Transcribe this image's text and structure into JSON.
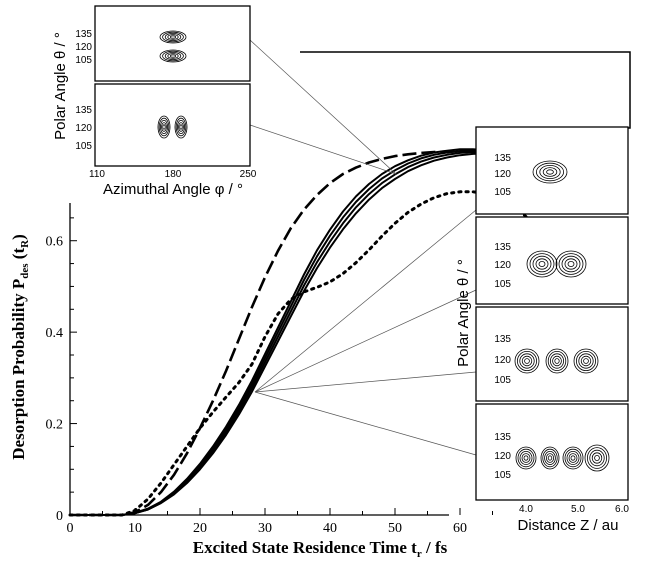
{
  "chart_data": {
    "type": "line",
    "xlabel": "Excited State Residence Time t_r / fs",
    "xlabel_main": "Excited State Residence Time t",
    "xlabel_sub": "r",
    "xlabel_unit": " / fs",
    "ylabel_main": "Desorption Probability P",
    "ylabel_sub1": "des",
    "ylabel_paren": " (t",
    "ylabel_sub2": "R",
    "ylabel_close": ")",
    "xlim": [
      0,
      68
    ],
    "ylim": [
      0,
      0.7
    ],
    "xticks": [
      0,
      10,
      20,
      30,
      40,
      50,
      60
    ],
    "yticks": [
      0,
      0.2,
      0.4,
      0.6
    ],
    "ytick_labels": [
      "0",
      "0.2",
      "0.4",
      "0.6"
    ],
    "grid": false,
    "series": [
      {
        "style": "solid",
        "x": [
          0,
          8,
          10,
          12,
          14,
          16,
          18,
          20,
          22,
          24,
          26,
          28,
          30,
          32,
          34,
          36,
          38,
          40,
          42,
          44,
          46,
          48,
          50,
          52,
          54,
          56,
          58,
          60,
          62,
          64,
          66,
          68,
          70,
          72
        ],
        "y": [
          0,
          0,
          0.004,
          0.012,
          0.026,
          0.045,
          0.07,
          0.1,
          0.135,
          0.175,
          0.22,
          0.27,
          0.325,
          0.38,
          0.435,
          0.49,
          0.54,
          0.585,
          0.625,
          0.66,
          0.69,
          0.715,
          0.735,
          0.752,
          0.765,
          0.775,
          0.782,
          0.787,
          0.79,
          0.791,
          0.79,
          0.785,
          0.775,
          0.76
        ]
      },
      {
        "style": "solid",
        "x": [
          0,
          8,
          10,
          12,
          14,
          16,
          18,
          20,
          22,
          24,
          26,
          28,
          30,
          32,
          34,
          36,
          38,
          40,
          42,
          44,
          46,
          48,
          50,
          52,
          54,
          56,
          58,
          60,
          62,
          64,
          66,
          68,
          70,
          72
        ],
        "y": [
          0,
          0,
          0.004,
          0.012,
          0.027,
          0.047,
          0.073,
          0.104,
          0.14,
          0.181,
          0.227,
          0.278,
          0.334,
          0.39,
          0.446,
          0.502,
          0.553,
          0.598,
          0.638,
          0.673,
          0.702,
          0.726,
          0.745,
          0.761,
          0.773,
          0.782,
          0.788,
          0.792,
          0.794,
          0.794,
          0.792,
          0.786,
          0.775,
          0.76
        ]
      },
      {
        "style": "solid",
        "x": [
          0,
          8,
          10,
          12,
          14,
          16,
          18,
          20,
          22,
          24,
          26,
          28,
          30,
          32,
          34,
          36,
          38,
          40,
          42,
          44,
          46,
          48,
          50,
          52,
          54,
          56,
          58,
          60,
          62,
          64,
          66,
          68,
          70,
          72
        ],
        "y": [
          0,
          0,
          0.004,
          0.013,
          0.028,
          0.049,
          0.076,
          0.108,
          0.145,
          0.187,
          0.234,
          0.286,
          0.343,
          0.4,
          0.457,
          0.514,
          0.566,
          0.611,
          0.651,
          0.685,
          0.713,
          0.736,
          0.754,
          0.769,
          0.78,
          0.788,
          0.793,
          0.796,
          0.797,
          0.796,
          0.793,
          0.787,
          0.775,
          0.76
        ]
      },
      {
        "style": "solid",
        "x": [
          0,
          8,
          10,
          12,
          14,
          16,
          18,
          20,
          22,
          24,
          26,
          28,
          30,
          32,
          34,
          36,
          38,
          40,
          42,
          44,
          46,
          48,
          50,
          52,
          54,
          56,
          58,
          60,
          62,
          64,
          66,
          68,
          70,
          72
        ],
        "y": [
          0,
          0,
          0.005,
          0.014,
          0.029,
          0.051,
          0.079,
          0.112,
          0.15,
          0.193,
          0.241,
          0.294,
          0.352,
          0.41,
          0.468,
          0.526,
          0.579,
          0.624,
          0.664,
          0.697,
          0.724,
          0.746,
          0.763,
          0.776,
          0.786,
          0.793,
          0.797,
          0.8,
          0.8,
          0.798,
          0.794,
          0.787,
          0.775,
          0.76
        ]
      },
      {
        "style": "dashed",
        "x": [
          0,
          8,
          10,
          12,
          14,
          16,
          18,
          20,
          22,
          24,
          26,
          28,
          30,
          32,
          34,
          36,
          38,
          40,
          42,
          44,
          46,
          48,
          50,
          52,
          54,
          56,
          58,
          60,
          62,
          64,
          66,
          68,
          70,
          72
        ],
        "y": [
          0,
          0,
          0.006,
          0.022,
          0.05,
          0.088,
          0.135,
          0.19,
          0.25,
          0.315,
          0.385,
          0.455,
          0.52,
          0.578,
          0.628,
          0.668,
          0.7,
          0.726,
          0.746,
          0.76,
          0.771,
          0.779,
          0.785,
          0.789,
          0.792,
          0.794,
          0.795,
          0.796,
          0.797,
          0.797,
          0.796,
          0.793,
          0.787,
          0.775
        ]
      },
      {
        "style": "dotted",
        "x": [
          0,
          8,
          10,
          12,
          14,
          16,
          18,
          20,
          22,
          24,
          26,
          28,
          30,
          32,
          34,
          36,
          38,
          40,
          42,
          44,
          46,
          48,
          50,
          52,
          54,
          56,
          58,
          60,
          62,
          64,
          66,
          68,
          70,
          72
        ],
        "y": [
          0,
          0,
          0.01,
          0.035,
          0.07,
          0.11,
          0.15,
          0.19,
          0.225,
          0.258,
          0.29,
          0.33,
          0.39,
          0.44,
          0.472,
          0.488,
          0.498,
          0.51,
          0.528,
          0.552,
          0.58,
          0.61,
          0.638,
          0.662,
          0.68,
          0.694,
          0.703,
          0.707,
          0.707,
          0.703,
          0.694,
          0.678,
          0.655,
          0.625
        ]
      }
    ]
  },
  "inset_top": {
    "ylabel": "Polar Angle θ / °",
    "xlabel": "Azimuthal Angle φ / °",
    "panels": [
      {
        "yticks": [
          "135",
          "120",
          "105"
        ]
      },
      {
        "yticks": [
          "135",
          "120",
          "105"
        ]
      }
    ],
    "xticks": [
      "110",
      "180",
      "250"
    ]
  },
  "inset_right": {
    "ylabel": "Polar Angle θ / °",
    "xlabel": "Distance Z / au",
    "panels": [
      {
        "yticks": [
          "135",
          "120",
          "105"
        ],
        "lobes": 1
      },
      {
        "yticks": [
          "135",
          "120",
          "105"
        ],
        "lobes": 2
      },
      {
        "yticks": [
          "135",
          "120",
          "105"
        ],
        "lobes": 3
      },
      {
        "yticks": [
          "135",
          "120",
          "105"
        ],
        "lobes": 4
      }
    ],
    "xticks": [
      "4.0",
      "5.0",
      "6.0"
    ]
  }
}
